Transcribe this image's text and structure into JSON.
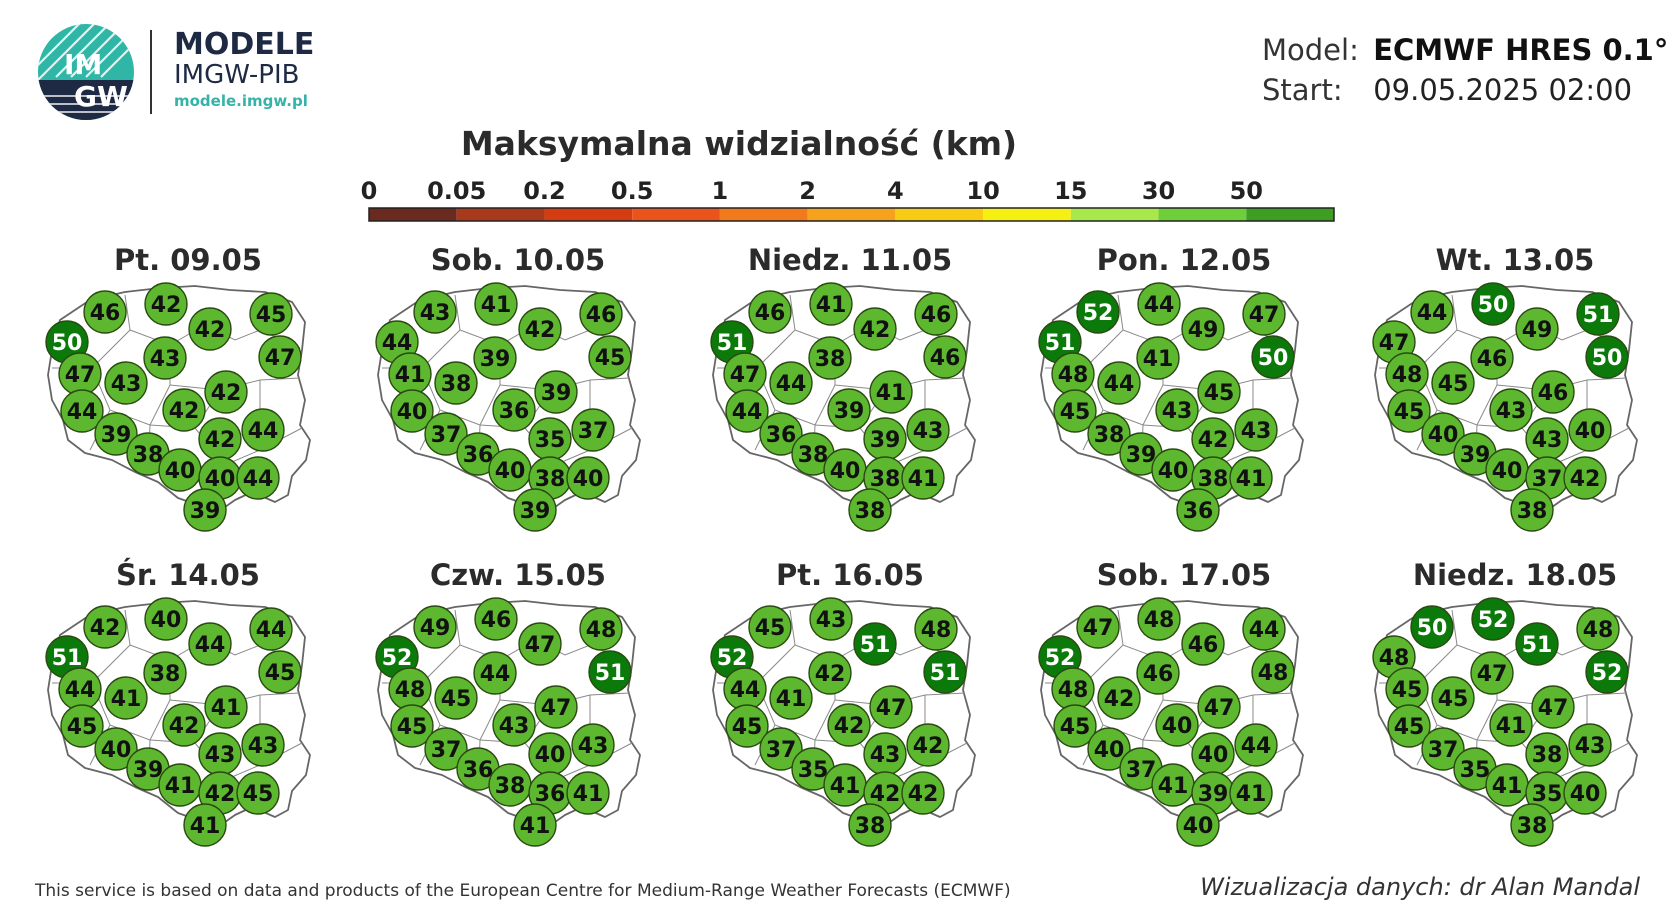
{
  "header": {
    "logo_text_top": "IM",
    "logo_text_bottom": "GW",
    "brand_title": "MODELE",
    "brand_subtitle": "IMGW-PIB",
    "brand_url": "modele.imgw.pl",
    "model_label": "Model:",
    "model_value": "ECMWF HRES 0.1°",
    "start_label": "Start:",
    "start_value": "09.05.2025 02:00"
  },
  "title": "Maksymalna widzialność (km)",
  "legend": {
    "ticks": [
      "0",
      "0.05",
      "0.2",
      "0.5",
      "1",
      "2",
      "4",
      "10",
      "15",
      "30",
      "50"
    ],
    "colors": [
      "#6b2a1f",
      "#a83a1c",
      "#d43d12",
      "#e9541a",
      "#f07a1c",
      "#f5a21c",
      "#f8cc15",
      "#f5ef12",
      "#a9e84a",
      "#6fcf3a",
      "#3e9e22"
    ]
  },
  "colors": {
    "circle_green": "#5db82f",
    "circle_dark": "#0b7a0b",
    "map_fill": "#ffffff",
    "map_border": "#8a8a8a"
  },
  "days": [
    {
      "label": "Pt. 09.05",
      "values": [
        50,
        46,
        42,
        42,
        45,
        47,
        47,
        43,
        43,
        42,
        42,
        44,
        39,
        38,
        42,
        44,
        40,
        40,
        44,
        39
      ]
    },
    {
      "label": "Sob. 10.05",
      "values": [
        44,
        43,
        41,
        42,
        46,
        45,
        41,
        38,
        39,
        39,
        36,
        40,
        37,
        36,
        35,
        37,
        40,
        38,
        40,
        39
      ]
    },
    {
      "label": "Niedz. 11.05",
      "values": [
        51,
        46,
        41,
        42,
        46,
        46,
        47,
        44,
        38,
        41,
        39,
        44,
        36,
        38,
        39,
        43,
        40,
        38,
        41,
        38
      ]
    },
    {
      "label": "Pon. 12.05",
      "values": [
        51,
        52,
        44,
        49,
        47,
        50,
        48,
        44,
        41,
        45,
        43,
        45,
        38,
        39,
        42,
        43,
        40,
        38,
        41,
        36
      ]
    },
    {
      "label": "Wt. 13.05",
      "values": [
        47,
        44,
        50,
        49,
        51,
        50,
        48,
        45,
        46,
        46,
        43,
        45,
        40,
        39,
        43,
        40,
        40,
        37,
        42,
        38
      ]
    },
    {
      "label": "Śr. 14.05",
      "values": [
        51,
        42,
        40,
        44,
        44,
        45,
        44,
        41,
        38,
        41,
        42,
        45,
        40,
        39,
        43,
        43,
        41,
        42,
        45,
        41
      ]
    },
    {
      "label": "Czw. 15.05",
      "values": [
        52,
        49,
        46,
        47,
        48,
        51,
        48,
        45,
        44,
        47,
        43,
        45,
        37,
        36,
        40,
        43,
        38,
        36,
        41,
        41
      ]
    },
    {
      "label": "Pt. 16.05",
      "values": [
        52,
        45,
        43,
        51,
        48,
        51,
        44,
        41,
        42,
        47,
        42,
        45,
        37,
        35,
        43,
        42,
        41,
        42,
        42,
        38
      ]
    },
    {
      "label": "Sob. 17.05",
      "values": [
        52,
        47,
        48,
        46,
        44,
        48,
        48,
        42,
        46,
        47,
        40,
        45,
        40,
        37,
        40,
        44,
        41,
        39,
        41,
        40
      ]
    },
    {
      "label": "Niedz. 18.05",
      "values": [
        48,
        50,
        52,
        51,
        48,
        52,
        45,
        45,
        47,
        47,
        41,
        45,
        37,
        35,
        38,
        43,
        41,
        35,
        40,
        38
      ]
    }
  ],
  "footer": {
    "left": "This service is based on data and products of the European Centre for Medium-Range Weather Forecasts (ECMWF)",
    "right": "Wizualizacja danych: dr Alan Mandal"
  }
}
